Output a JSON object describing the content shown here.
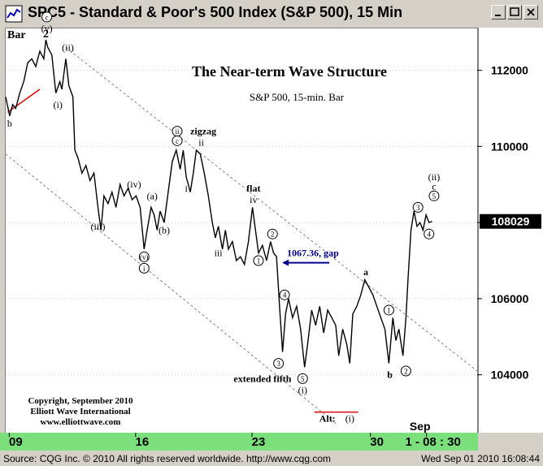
{
  "window": {
    "title": "SPC5 - Standard & Poor's 500 Index (S&P 500), 15 Min",
    "buttons": [
      "minimize",
      "maximize",
      "close"
    ]
  },
  "status": {
    "left": "Source: CQG Inc. © 2010 All rights reserved worldwide.  http://www.cqg.com",
    "right": "Wed Sep 01 2010 16:08:44"
  },
  "chart_data": {
    "type": "line",
    "title": "The Near-term Wave Structure",
    "subtitle": "S&P 500, 15-min. Bar",
    "bar_label": "Bar",
    "bar_count_label": "2",
    "ylim": [
      1025,
      1131
    ],
    "y_ticks": [
      {
        "value": 1040,
        "label": "104000"
      },
      {
        "value": 1060,
        "label": "106000"
      },
      {
        "value": 1080,
        "label": "108000"
      },
      {
        "value": 1100,
        "label": "110000"
      },
      {
        "value": 1120,
        "label": "112000"
      }
    ],
    "last_price_label": "108029",
    "last_price_value": 1080.3,
    "x_ticks": [
      {
        "x": 0.5,
        "label": "09"
      },
      {
        "x": 6.8,
        "label": "16"
      },
      {
        "x": 12.6,
        "label": "23"
      },
      {
        "x": 18.5,
        "label": "30"
      },
      {
        "x": 21.3,
        "label": "1 - 08 : 30"
      }
    ],
    "month_label": "Sep",
    "month_label_x": 20.7,
    "xlim": [
      0,
      23.5
    ],
    "price_path": [
      [
        0.0,
        1113
      ],
      [
        0.2,
        1108
      ],
      [
        0.35,
        1111
      ],
      [
        0.5,
        1110
      ],
      [
        0.7,
        1114
      ],
      [
        0.9,
        1117
      ],
      [
        1.1,
        1122
      ],
      [
        1.3,
        1123
      ],
      [
        1.5,
        1121
      ],
      [
        1.7,
        1125
      ],
      [
        1.9,
        1123
      ],
      [
        2.0,
        1128
      ],
      [
        2.1,
        1126
      ],
      [
        2.3,
        1124
      ],
      [
        2.5,
        1114
      ],
      [
        2.7,
        1117
      ],
      [
        2.8,
        1115
      ],
      [
        3.0,
        1123
      ],
      [
        3.15,
        1116
      ],
      [
        3.35,
        1113
      ],
      [
        3.45,
        1099
      ],
      [
        3.6,
        1097
      ],
      [
        3.8,
        1093
      ],
      [
        4.0,
        1095
      ],
      [
        4.2,
        1091
      ],
      [
        4.4,
        1093
      ],
      [
        4.6,
        1084
      ],
      [
        4.75,
        1078
      ],
      [
        4.9,
        1087
      ],
      [
        5.1,
        1085
      ],
      [
        5.3,
        1088
      ],
      [
        5.5,
        1084
      ],
      [
        5.7,
        1090
      ],
      [
        5.9,
        1087
      ],
      [
        6.1,
        1089
      ],
      [
        6.3,
        1086
      ],
      [
        6.5,
        1087
      ],
      [
        6.7,
        1084
      ],
      [
        6.9,
        1073
      ],
      [
        7.05,
        1078
      ],
      [
        7.25,
        1084
      ],
      [
        7.4,
        1082
      ],
      [
        7.55,
        1078
      ],
      [
        7.7,
        1083
      ],
      [
        7.9,
        1080
      ],
      [
        8.1,
        1088
      ],
      [
        8.3,
        1096
      ],
      [
        8.5,
        1099
      ],
      [
        8.7,
        1094
      ],
      [
        8.85,
        1099
      ],
      [
        9.0,
        1092
      ],
      [
        9.2,
        1088
      ],
      [
        9.35,
        1093
      ],
      [
        9.5,
        1099
      ],
      [
        9.7,
        1098
      ],
      [
        9.9,
        1093
      ],
      [
        10.1,
        1087
      ],
      [
        10.3,
        1080
      ],
      [
        10.45,
        1076
      ],
      [
        10.6,
        1079
      ],
      [
        10.8,
        1073
      ],
      [
        10.95,
        1078
      ],
      [
        11.1,
        1073
      ],
      [
        11.3,
        1075
      ],
      [
        11.5,
        1070
      ],
      [
        11.7,
        1071
      ],
      [
        11.9,
        1069
      ],
      [
        12.1,
        1075
      ],
      [
        12.3,
        1084
      ],
      [
        12.45,
        1078
      ],
      [
        12.6,
        1072
      ],
      [
        12.8,
        1074
      ],
      [
        13.0,
        1070
      ],
      [
        13.2,
        1075
      ],
      [
        13.35,
        1072
      ],
      [
        13.5,
        1071
      ],
      [
        13.65,
        1058
      ],
      [
        13.8,
        1046
      ],
      [
        13.95,
        1056
      ],
      [
        14.1,
        1060
      ],
      [
        14.3,
        1055
      ],
      [
        14.5,
        1058
      ],
      [
        14.7,
        1052
      ],
      [
        14.9,
        1042
      ],
      [
        15.05,
        1048
      ],
      [
        15.25,
        1057
      ],
      [
        15.45,
        1053
      ],
      [
        15.65,
        1058
      ],
      [
        15.85,
        1051
      ],
      [
        16.05,
        1057
      ],
      [
        16.25,
        1055
      ],
      [
        16.45,
        1053
      ],
      [
        16.6,
        1045
      ],
      [
        16.8,
        1052
      ],
      [
        17.0,
        1048
      ],
      [
        17.15,
        1043
      ],
      [
        17.3,
        1056
      ],
      [
        17.5,
        1058
      ],
      [
        17.7,
        1061
      ],
      [
        17.9,
        1065
      ],
      [
        18.1,
        1063
      ],
      [
        18.3,
        1061
      ],
      [
        18.5,
        1058
      ],
      [
        18.7,
        1055
      ],
      [
        18.9,
        1052
      ],
      [
        19.1,
        1043
      ],
      [
        19.3,
        1055
      ],
      [
        19.45,
        1049
      ],
      [
        19.6,
        1052
      ],
      [
        19.8,
        1045
      ],
      [
        19.95,
        1055
      ],
      [
        20.05,
        1065
      ],
      [
        20.2,
        1078
      ],
      [
        20.35,
        1083
      ],
      [
        20.5,
        1079
      ],
      [
        20.65,
        1080
      ],
      [
        20.8,
        1078
      ],
      [
        20.95,
        1082
      ],
      [
        21.1,
        1080
      ],
      [
        21.25,
        1080.3
      ]
    ],
    "channel_lines": [
      {
        "x1": 3.0,
        "y1": 1126,
        "x2": 23.5,
        "y2": 1041
      },
      {
        "x1": 0.0,
        "y1": 1098,
        "x2": 16.5,
        "y2": 1027
      }
    ],
    "labels": [
      {
        "x": 0.2,
        "y": 1106,
        "text": "b",
        "style": "plain"
      },
      {
        "x": 2.05,
        "y": 1134,
        "text": "c",
        "style": "circle"
      },
      {
        "x": 2.05,
        "y": 1131,
        "text": "(v)",
        "style": "plain"
      },
      {
        "x": 2.0,
        "y": 1132.5,
        "text": "",
        "style": "none"
      },
      {
        "x": 3.1,
        "y": 1126,
        "text": "(ii)",
        "style": "plain"
      },
      {
        "x": 2.6,
        "y": 1111,
        "text": "(i)",
        "style": "plain"
      },
      {
        "x": 8.55,
        "y": 1104,
        "text": "ii",
        "style": "circle"
      },
      {
        "x": 8.55,
        "y": 1101.5,
        "text": "c",
        "style": "circle"
      },
      {
        "x": 9.85,
        "y": 1104,
        "text": "zigzag",
        "style": "bold"
      },
      {
        "x": 9.75,
        "y": 1101,
        "text": "ii",
        "style": "plain"
      },
      {
        "x": 9.0,
        "y": 1089,
        "text": "i",
        "style": "plain"
      },
      {
        "x": 6.4,
        "y": 1090,
        "text": "(iv)",
        "style": "plain"
      },
      {
        "x": 7.3,
        "y": 1087,
        "text": "(a)",
        "style": "plain"
      },
      {
        "x": 7.9,
        "y": 1078,
        "text": "(b)",
        "style": "plain"
      },
      {
        "x": 4.6,
        "y": 1079,
        "text": "(iii)",
        "style": "plain"
      },
      {
        "x": 6.9,
        "y": 1071,
        "text": "(v)",
        "style": "circle"
      },
      {
        "x": 6.9,
        "y": 1068,
        "text": "i",
        "style": "circle"
      },
      {
        "x": 12.35,
        "y": 1089,
        "text": "flat",
        "style": "bold"
      },
      {
        "x": 12.35,
        "y": 1086,
        "text": "iv",
        "style": "plain"
      },
      {
        "x": 10.6,
        "y": 1072,
        "text": "iii",
        "style": "plain"
      },
      {
        "x": 13.3,
        "y": 1077,
        "text": "2",
        "style": "circle"
      },
      {
        "x": 12.6,
        "y": 1070,
        "text": "1",
        "style": "circle"
      },
      {
        "x": 13.9,
        "y": 1061,
        "text": "4",
        "style": "circle"
      },
      {
        "x": 13.6,
        "y": 1043,
        "text": "3",
        "style": "circle"
      },
      {
        "x": 14.8,
        "y": 1039,
        "text": "5",
        "style": "circle"
      },
      {
        "x": 14.8,
        "y": 1036,
        "text": "(i)",
        "style": "plain"
      },
      {
        "x": 12.8,
        "y": 1039,
        "text": "extended fifth",
        "style": "bold"
      },
      {
        "x": 17.95,
        "y": 1067,
        "text": "a",
        "style": "bold"
      },
      {
        "x": 19.1,
        "y": 1057,
        "text": "1",
        "style": "circle"
      },
      {
        "x": 19.15,
        "y": 1040,
        "text": "b",
        "style": "bold"
      },
      {
        "x": 19.95,
        "y": 1041,
        "text": "2",
        "style": "circle"
      },
      {
        "x": 20.55,
        "y": 1084,
        "text": "3",
        "style": "circle"
      },
      {
        "x": 21.1,
        "y": 1077,
        "text": "4",
        "style": "circle"
      },
      {
        "x": 21.35,
        "y": 1087,
        "text": "5",
        "style": "circle"
      },
      {
        "x": 21.35,
        "y": 1089.5,
        "text": "c",
        "style": "plain"
      },
      {
        "x": 21.35,
        "y": 1092,
        "text": "(ii)",
        "style": "plain"
      }
    ],
    "gap_annotation": {
      "text": "1067.36, gap",
      "x": 13.7,
      "y": 1072
    },
    "alt_label": {
      "prefix": "Alt:",
      "text": "(i)",
      "x": 16.6,
      "y": 1028.5
    },
    "copyright": [
      "Copyright, September 2010",
      "Elliott Wave International",
      "www.elliottwave.com"
    ],
    "colors": {
      "price": "#000000",
      "channel": "#808080",
      "grid": "#cccccc",
      "red_line": "#e00000",
      "gap_text": "#00008b",
      "axis_bg_green": "#7be07b",
      "price_label_bg": "#000000",
      "price_label_fg": "#ffffff"
    }
  }
}
